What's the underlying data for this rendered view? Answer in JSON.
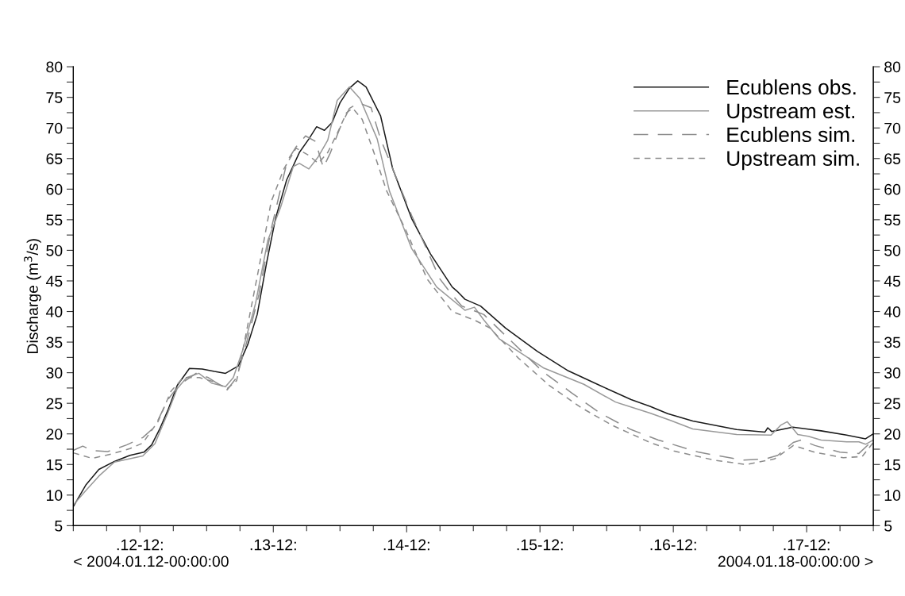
{
  "chart_data": {
    "type": "line",
    "ylabel": "Discharge (m$^{3}$/s)",
    "legend": "top right",
    "grid": false,
    "xlim": [
      "2004-01-12T00:00",
      "2004-01-18T00:00"
    ],
    "ylim": [
      5,
      80
    ],
    "y2lim": [
      5,
      80
    ],
    "xticks": [
      {
        "value": "2004-01-12T00:00",
        "label": null
      },
      {
        "value": "2004-01-12T06:00",
        "label": null
      },
      {
        "value": "2004-01-12T12:00",
        "label": ".12-12:"
      },
      {
        "value": "2004-01-12T18:00",
        "label": null
      },
      {
        "value": "2004-01-13T00:00",
        "label": null
      },
      {
        "value": "2004-01-13T06:00",
        "label": null
      },
      {
        "value": "2004-01-13T12:00",
        "label": ".13-12:"
      },
      {
        "value": "2004-01-13T18:00",
        "label": null
      },
      {
        "value": "2004-01-14T00:00",
        "label": null
      },
      {
        "value": "2004-01-14T06:00",
        "label": null
      },
      {
        "value": "2004-01-14T12:00",
        "label": ".14-12:"
      },
      {
        "value": "2004-01-14T18:00",
        "label": null
      },
      {
        "value": "2004-01-15T00:00",
        "label": null
      },
      {
        "value": "2004-01-15T06:00",
        "label": null
      },
      {
        "value": "2004-01-15T12:00",
        "label": ".15-12:"
      },
      {
        "value": "2004-01-15T18:00",
        "label": null
      },
      {
        "value": "2004-01-16T00:00",
        "label": null
      },
      {
        "value": "2004-01-16T06:00",
        "label": null
      },
      {
        "value": "2004-01-16T12:00",
        "label": ".16-12:"
      },
      {
        "value": "2004-01-16T18:00",
        "label": null
      },
      {
        "value": "2004-01-17T00:00",
        "label": null
      },
      {
        "value": "2004-01-17T06:00",
        "label": null
      },
      {
        "value": "2004-01-17T12:00",
        "label": ".17-12:"
      },
      {
        "value": "2004-01-17T18:00",
        "label": null
      },
      {
        "value": "2004-01-18T00:00",
        "label": null
      }
    ],
    "yticks": [
      5,
      {
        "value": 7.5,
        "label": null
      },
      10,
      {
        "value": 12.5,
        "label": null
      },
      15,
      {
        "value": 17.5,
        "label": null
      },
      20,
      {
        "value": 22.5,
        "label": null
      },
      25,
      {
        "value": 27.5,
        "label": null
      },
      30,
      {
        "value": 32.5,
        "label": null
      },
      35,
      {
        "value": 37.5,
        "label": null
      },
      40,
      {
        "value": 42.5,
        "label": null
      },
      45,
      {
        "value": 47.5,
        "label": null
      },
      50,
      {
        "value": 52.5,
        "label": null
      },
      55,
      {
        "value": 57.5,
        "label": null
      },
      60,
      {
        "value": 62.5,
        "label": null
      },
      65,
      {
        "value": 67.5,
        "label": null
      },
      70,
      {
        "value": 72.5,
        "label": null
      },
      75,
      {
        "value": 77.5,
        "label": null
      },
      80
    ],
    "y2ticks": [
      5,
      {
        "value": 7.5,
        "label": null
      },
      10,
      {
        "value": 12.5,
        "label": null
      },
      15,
      {
        "value": 17.5,
        "label": null
      },
      20,
      {
        "value": 22.5,
        "label": null
      },
      25,
      {
        "value": 27.5,
        "label": null
      },
      30,
      {
        "value": 32.5,
        "label": null
      },
      35,
      {
        "value": 37.5,
        "label": null
      },
      40,
      {
        "value": 42.5,
        "label": null
      },
      45,
      {
        "value": 47.5,
        "label": null
      },
      50,
      {
        "value": 52.5,
        "label": null
      },
      55,
      {
        "value": 57.5,
        "label": null
      },
      60,
      {
        "value": 62.5,
        "label": null
      },
      65,
      {
        "value": 67.5,
        "label": null
      },
      70,
      {
        "value": 72.5,
        "label": null
      },
      75,
      {
        "value": 77.5,
        "label": null
      },
      80
    ],
    "annotations": [
      "< 2004.01.12-00:00:00",
      "2004.01.18-00:00:00 >"
    ],
    "series": [
      {
        "name": "Ecublens obs.",
        "color": "#1a1a1a",
        "line_style": "solid",
        "x": [
          "2004-01-12T00:00",
          "2004-01-12T02:18",
          "2004-01-12T04:36",
          "2004-01-12T07:24",
          "2004-01-12T10:12",
          "2004-01-12T12:42",
          "2004-01-12T14:06",
          "2004-01-12T15:36",
          "2004-01-12T17:00",
          "2004-01-12T18:42",
          "2004-01-12T20:54",
          "2004-01-12T23:12",
          "2004-01-13T01:24",
          "2004-01-13T03:24",
          "2004-01-13T05:42",
          "2004-01-13T07:24",
          "2004-01-13T09:06",
          "2004-01-13T10:48",
          "2004-01-13T12:24",
          "2004-01-13T14:24",
          "2004-01-13T16:42",
          "2004-01-13T18:24",
          "2004-01-13T19:48",
          "2004-01-13T21:12",
          "2004-01-13T22:36",
          "2004-01-14T00:00",
          "2004-01-14T01:42",
          "2004-01-14T03:12",
          "2004-01-14T04:42",
          "2004-01-14T07:18",
          "2004-01-14T09:30",
          "2004-01-14T12:54",
          "2004-01-14T16:18",
          "2004-01-14T20:12",
          "2004-01-14T21:06",
          "2004-01-14T22:30",
          "2004-01-15T01:18",
          "2004-01-15T05:48",
          "2004-01-15T11:30",
          "2004-01-15T17:06",
          "2004-01-15T22:48",
          "2004-01-16T04:24",
          "2004-01-16T07:48",
          "2004-01-16T11:00",
          "2004-01-16T15:30",
          "2004-01-16T23:24",
          "2004-01-17T04:30",
          "2004-01-17T05:00",
          "2004-01-17T05:42",
          "2004-01-17T09:30",
          "2004-01-17T14:36",
          "2004-01-17T19:12",
          "2004-01-17T22:36",
          "2004-01-18T00:00"
        ],
        "values": [
          8.1,
          11.7,
          14.2,
          15.5,
          16.5,
          17,
          18.2,
          20.9,
          23.8,
          27.9,
          30.7,
          30.6,
          30.2,
          29.9,
          31.1,
          34.6,
          39.5,
          48,
          55.2,
          61.5,
          66,
          68.2,
          70.2,
          69.6,
          70.9,
          74.1,
          76.5,
          77.7,
          76.7,
          72,
          63.3,
          55.2,
          49.4,
          44,
          43.3,
          42,
          40.9,
          37.3,
          33.5,
          30.3,
          27.9,
          25.6,
          24.5,
          23.3,
          22.1,
          20.7,
          20.3,
          21,
          20.4,
          21.1,
          20.5,
          19.8,
          19.2,
          20
        ]
      },
      {
        "name": "Upstream est.",
        "color": "#999999",
        "line_style": "solid",
        "x": [
          "2004-01-12T00:00",
          "2004-01-12T02:18",
          "2004-01-12T04:36",
          "2004-01-12T07:24",
          "2004-01-12T12:30",
          "2004-01-12T14:42",
          "2004-01-12T17:00",
          "2004-01-12T18:42",
          "2004-01-12T20:24",
          "2004-01-12T22:36",
          "2004-01-13T00:54",
          "2004-01-13T03:24",
          "2004-01-13T04:48",
          "2004-01-13T06:30",
          "2004-01-13T08:48",
          "2004-01-13T11:00",
          "2004-01-13T13:18",
          "2004-01-13T15:36",
          "2004-01-13T16:42",
          "2004-01-13T18:24",
          "2004-01-13T20:06",
          "2004-01-13T21:48",
          "2004-01-13T23:30",
          "2004-01-14T01:42",
          "2004-01-14T03:36",
          "2004-01-14T06:42",
          "2004-01-14T08:54",
          "2004-01-14T12:54",
          "2004-01-14T17:24",
          "2004-01-14T22:30",
          "2004-01-15T00:12",
          "2004-01-15T01:54",
          "2004-01-15T04:42",
          "2004-01-15T12:36",
          "2004-01-15T19:54",
          "2004-01-16T01:36",
          "2004-01-16T07:48",
          "2004-01-16T11:30",
          "2004-01-16T15:30",
          "2004-01-16T23:24",
          "2004-01-17T05:36",
          "2004-01-17T07:18",
          "2004-01-17T08:30",
          "2004-01-17T10:24",
          "2004-01-17T12:18",
          "2004-01-17T14:36",
          "2004-01-17T19:12",
          "2004-01-17T21:24",
          "2004-01-17T22:36",
          "2004-01-18T00:00"
        ],
        "values": [
          8.4,
          10.8,
          13.1,
          15.4,
          16.4,
          18.4,
          23.4,
          27.4,
          29.2,
          29.9,
          28.3,
          27.7,
          29.2,
          33.7,
          41.3,
          51.6,
          57,
          63.7,
          64.2,
          63.3,
          65.3,
          68,
          74.5,
          76.7,
          74.8,
          68.2,
          59.7,
          50.3,
          44,
          40.2,
          40.7,
          38.6,
          35.5,
          30.8,
          28.1,
          25.2,
          23.4,
          22.2,
          20.8,
          19.9,
          19.8,
          21.4,
          22,
          19.9,
          19.6,
          19,
          18.7,
          18.7,
          18.3,
          19
        ]
      },
      {
        "name": "Ecublens sim.",
        "color": "#8c8c8c",
        "line_style": "dashed",
        "x": [
          "2004-01-12T00:00",
          "2004-01-12T01:42",
          "2004-01-12T03:24",
          "2004-01-12T06:12",
          "2004-01-12T09:36",
          "2004-01-12T12:30",
          "2004-01-12T14:42",
          "2004-01-12T17:00",
          "2004-01-12T19:12",
          "2004-01-12T22:06",
          "2004-01-13T00:18",
          "2004-01-13T03:42",
          "2004-01-13T05:24",
          "2004-01-13T07:06",
          "2004-01-13T09:24",
          "2004-01-13T11:36",
          "2004-01-13T14:30",
          "2004-01-13T16:06",
          "2004-01-13T17:48",
          "2004-01-13T19:36",
          "2004-01-13T21:00",
          "2004-01-13T22:18",
          "2004-01-14T00:00",
          "2004-01-14T01:42",
          "2004-01-14T03:24",
          "2004-01-14T05:36",
          "2004-01-14T07:18",
          "2004-01-14T09:30",
          "2004-01-14T12:54",
          "2004-01-14T18:00",
          "2004-01-14T20:12",
          "2004-01-14T21:54",
          "2004-01-15T01:54",
          "2004-01-15T07:00",
          "2004-01-15T12:36",
          "2004-01-15T17:42",
          "2004-01-15T22:48",
          "2004-01-16T04:24",
          "2004-01-16T09:18",
          "2004-01-16T16:36",
          "2004-01-17T00:30",
          "2004-01-17T04:30",
          "2004-01-17T06:48",
          "2004-01-17T09:36",
          "2004-01-17T11:00",
          "2004-01-17T13:30",
          "2004-01-17T18:00",
          "2004-01-17T21:24",
          "2004-01-18T00:00"
        ],
        "values": [
          17.3,
          18,
          17.3,
          17.1,
          18.2,
          19.4,
          21.2,
          25.6,
          28.1,
          29.9,
          29.2,
          27.2,
          29.2,
          34.6,
          42.7,
          53.4,
          64.6,
          66.9,
          68.7,
          67.8,
          63.5,
          66,
          70,
          73.2,
          74.1,
          73.3,
          68.2,
          63.3,
          55.7,
          45.3,
          42.7,
          40.9,
          39.5,
          35,
          30.1,
          26.7,
          23.4,
          20.7,
          19,
          17,
          15.7,
          15.9,
          16.5,
          18.6,
          19,
          18.1,
          17,
          16.8,
          19
        ]
      },
      {
        "name": "Upstream sim.",
        "color": "#8c8c8c",
        "line_style": "dotted",
        "x": [
          "2004-01-12T00:00",
          "2004-01-12T03:24",
          "2004-01-12T06:48",
          "2004-01-12T10:12",
          "2004-01-12T12:30",
          "2004-01-12T15:18",
          "2004-01-12T17:36",
          "2004-01-12T19:48",
          "2004-01-12T22:42",
          "2004-01-13T01:24",
          "2004-01-13T03:42",
          "2004-01-13T05:24",
          "2004-01-13T07:06",
          "2004-01-13T09:24",
          "2004-01-13T11:36",
          "2004-01-13T13:54",
          "2004-01-13T16:06",
          "2004-01-13T18:24",
          "2004-01-13T20:06",
          "2004-01-13T21:48",
          "2004-01-13T23:30",
          "2004-01-14T01:12",
          "2004-01-14T02:18",
          "2004-01-14T04:00",
          "2004-01-14T06:06",
          "2004-01-14T08:24",
          "2004-01-14T11:48",
          "2004-01-14T15:42",
          "2004-01-14T20:12",
          "2004-01-15T00:12",
          "2004-01-15T03:00",
          "2004-01-15T08:06",
          "2004-01-15T13:42",
          "2004-01-15T19:24",
          "2004-01-16T01:00",
          "2004-01-16T07:48",
          "2004-01-16T12:06",
          "2004-01-16T19:24",
          "2004-01-17T01:06",
          "2004-01-17T06:12",
          "2004-01-17T09:36",
          "2004-01-17T13:30",
          "2004-01-17T18:36",
          "2004-01-17T22:00",
          "2004-01-18T00:00"
        ],
        "values": [
          16.9,
          16,
          16.7,
          17.6,
          18.5,
          22.1,
          27,
          29.2,
          29.2,
          28.5,
          27.4,
          28.7,
          36.4,
          47.1,
          57.9,
          63.3,
          66.7,
          65.5,
          64.2,
          66,
          69.1,
          72.5,
          73.2,
          71.4,
          66,
          59.7,
          53.4,
          45.3,
          40,
          38.6,
          37.3,
          32.4,
          27.9,
          24.3,
          21.4,
          18.6,
          17.2,
          15.7,
          15,
          15.9,
          18.1,
          17,
          16.1,
          16.3,
          18.6
        ]
      }
    ]
  }
}
